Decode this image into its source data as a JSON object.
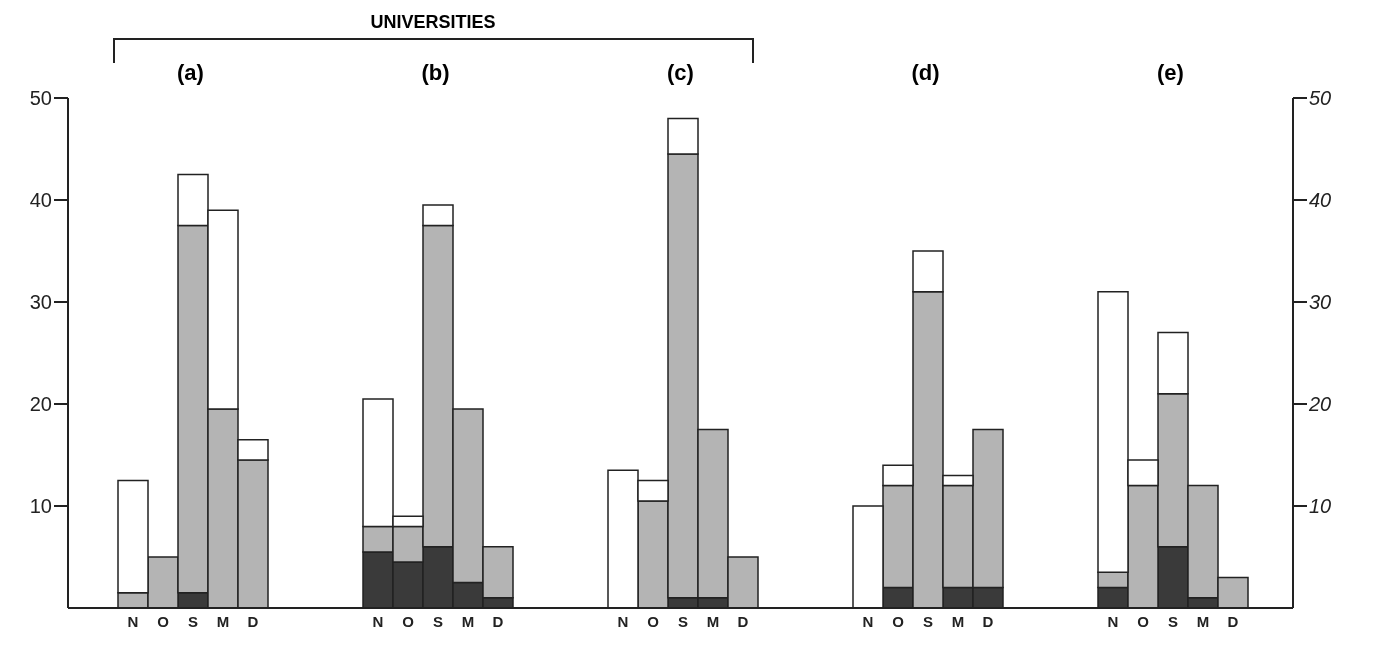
{
  "chart_data": [
    {
      "type": "bar",
      "title": "(a)",
      "annotations": [
        "UNIVERSITIES"
      ],
      "categories": [
        "N",
        "O",
        "S",
        "M",
        "D"
      ],
      "stacked": true,
      "ylim": [
        0,
        50
      ],
      "yticks": [
        10,
        20,
        30,
        40,
        50
      ],
      "series": [
        {
          "color": "#3a3a3a",
          "values": [
            0,
            0,
            1.5,
            0,
            0
          ]
        },
        {
          "color": "#b4b4b4",
          "values": [
            1.5,
            5,
            36,
            19.5,
            14.5
          ]
        },
        {
          "color": "#ffffff",
          "values": [
            11,
            0,
            5,
            19.5,
            2
          ]
        }
      ]
    },
    {
      "type": "bar",
      "title": "(b)",
      "categories": [
        "N",
        "O",
        "S",
        "M",
        "D"
      ],
      "stacked": true,
      "ylim": [
        0,
        50
      ],
      "tick_labels": "x",
      "series": [
        {
          "color": "#3a3a3a",
          "values": [
            5.5,
            4.5,
            6,
            2.5,
            1
          ]
        },
        {
          "color": "#b4b4b4",
          "values": [
            2.5,
            3.5,
            31.5,
            17,
            5
          ]
        },
        {
          "color": "#ffffff",
          "values": [
            12.5,
            1,
            2,
            0,
            0
          ]
        }
      ]
    },
    {
      "type": "bar",
      "title": "(c)",
      "categories": [
        "N",
        "O",
        "S",
        "M",
        "D"
      ],
      "stacked": true,
      "ylim": [
        0,
        50
      ],
      "tick_labels": "x",
      "series": [
        {
          "color": "#3a3a3a",
          "values": [
            0,
            0,
            1,
            1,
            0
          ]
        },
        {
          "color": "#b4b4b4",
          "values": [
            0,
            10.5,
            43.5,
            16.5,
            5
          ]
        },
        {
          "color": "#ffffff",
          "values": [
            13.5,
            2,
            3.5,
            0,
            0
          ]
        }
      ]
    },
    {
      "type": "bar",
      "title": "(d)",
      "categories": [
        "N",
        "O",
        "S",
        "M",
        "D"
      ],
      "stacked": true,
      "ylim": [
        0,
        50
      ],
      "tick_labels": "x",
      "series": [
        {
          "color": "#3a3a3a",
          "values": [
            0,
            2,
            0,
            2,
            2
          ]
        },
        {
          "color": "#b4b4b4",
          "values": [
            0,
            10,
            31,
            10,
            15.5
          ]
        },
        {
          "color": "#ffffff",
          "values": [
            10,
            2,
            4,
            1,
            0
          ]
        }
      ]
    },
    {
      "type": "bar",
      "title": "(e)",
      "categories": [
        "N",
        "O",
        "S",
        "M",
        "D"
      ],
      "stacked": true,
      "y2lim": [
        0,
        50
      ],
      "y2ticks": [
        10,
        20,
        30,
        40,
        50
      ],
      "series": [
        {
          "color": "#3a3a3a",
          "values": [
            2,
            0,
            6,
            1,
            0
          ],
          "axis": "y2"
        },
        {
          "color": "#b4b4b4",
          "values": [
            1.5,
            12,
            15,
            11,
            3
          ],
          "axis": "y2"
        },
        {
          "color": "#ffffff",
          "values": [
            27.5,
            2.5,
            6,
            0,
            0
          ],
          "axis": "y2"
        }
      ]
    }
  ]
}
